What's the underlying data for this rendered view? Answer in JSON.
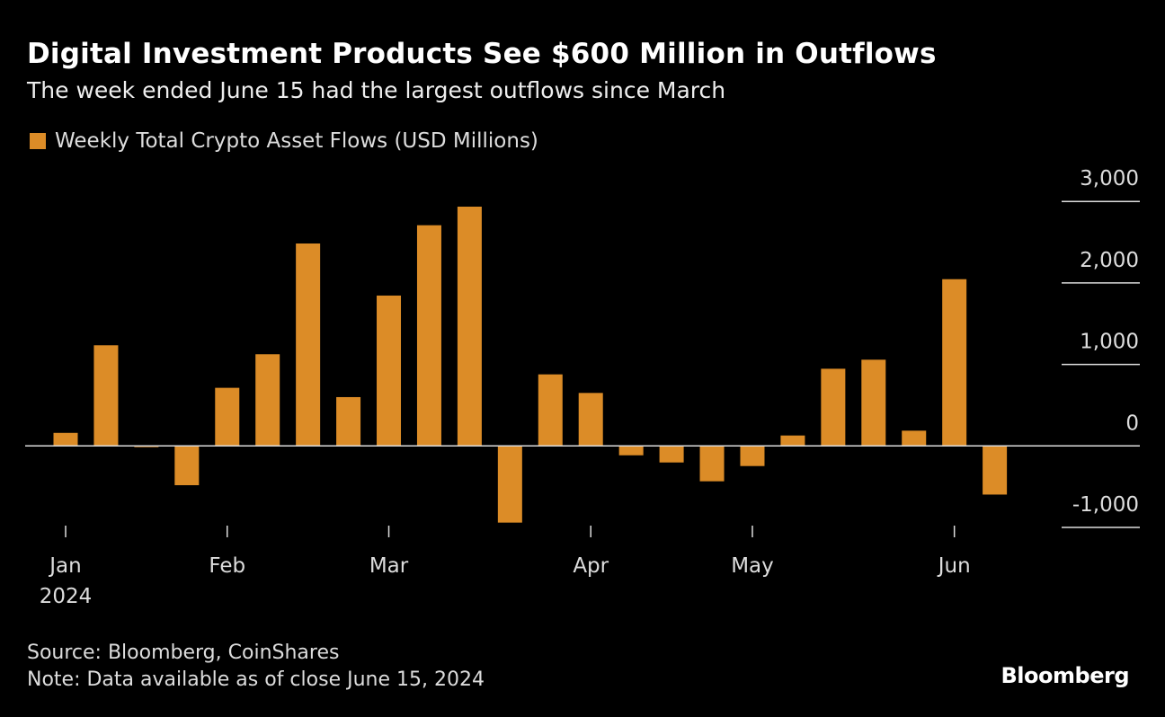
{
  "title": "Digital Investment Products See $600 Million in Outflows",
  "subtitle": "The week ended June 15 had the largest outflows since March",
  "source": "Source: Bloomberg, CoinShares",
  "note": "Note: Data available as of close June 15, 2024",
  "logo": "Bloomberg",
  "chart_data": {
    "type": "bar",
    "title": "Digital Investment Products See $600 Million in Outflows",
    "legend": [
      {
        "name": "Weekly Total Crypto Asset Flows (USD Millions)",
        "color": "#DC8C27"
      }
    ],
    "legend_position": "top-left",
    "categories": [
      "Jan 6",
      "Jan 13",
      "Jan 20",
      "Jan 27",
      "Feb 3",
      "Feb 10",
      "Feb 17",
      "Feb 24",
      "Mar 2",
      "Mar 9",
      "Mar 16",
      "Mar 23",
      "Mar 30",
      "Apr 6",
      "Apr 13",
      "Apr 20",
      "Apr 27",
      "May 4",
      "May 11",
      "May 18",
      "May 25",
      "Jun 1",
      "Jun 8",
      "Jun 15"
    ],
    "series": [
      {
        "name": "Weekly Total Crypto Asset Flows (USD Millions)",
        "values": [
          160,
          1235,
          -15,
          -482,
          713,
          1125,
          2484,
          599,
          1845,
          2708,
          2936,
          -941,
          878,
          650,
          -115,
          -203,
          -434,
          -247,
          128,
          947,
          1058,
          187,
          2046,
          -597
        ]
      }
    ],
    "ylim": [
      -1000,
      3000
    ],
    "y_ticks": [
      {
        "value": 3000,
        "label": "3,000"
      },
      {
        "value": 2000,
        "label": "2,000"
      },
      {
        "value": 1000,
        "label": "1,000"
      },
      {
        "value": 0,
        "label": "0"
      },
      {
        "value": -1000,
        "label": "-1,000"
      }
    ],
    "y_axis_position": "right",
    "x_ticks": [
      {
        "index": 0,
        "label": "Jan",
        "sublabel": "2024"
      },
      {
        "index": 4,
        "label": "Feb"
      },
      {
        "index": 8,
        "label": "Mar"
      },
      {
        "index": 13,
        "label": "Apr"
      },
      {
        "index": 17,
        "label": "May"
      },
      {
        "index": 22,
        "label": "Jun"
      }
    ],
    "xlabel": "",
    "ylabel": "",
    "grid": true,
    "bar_color": "#DC8C27"
  }
}
